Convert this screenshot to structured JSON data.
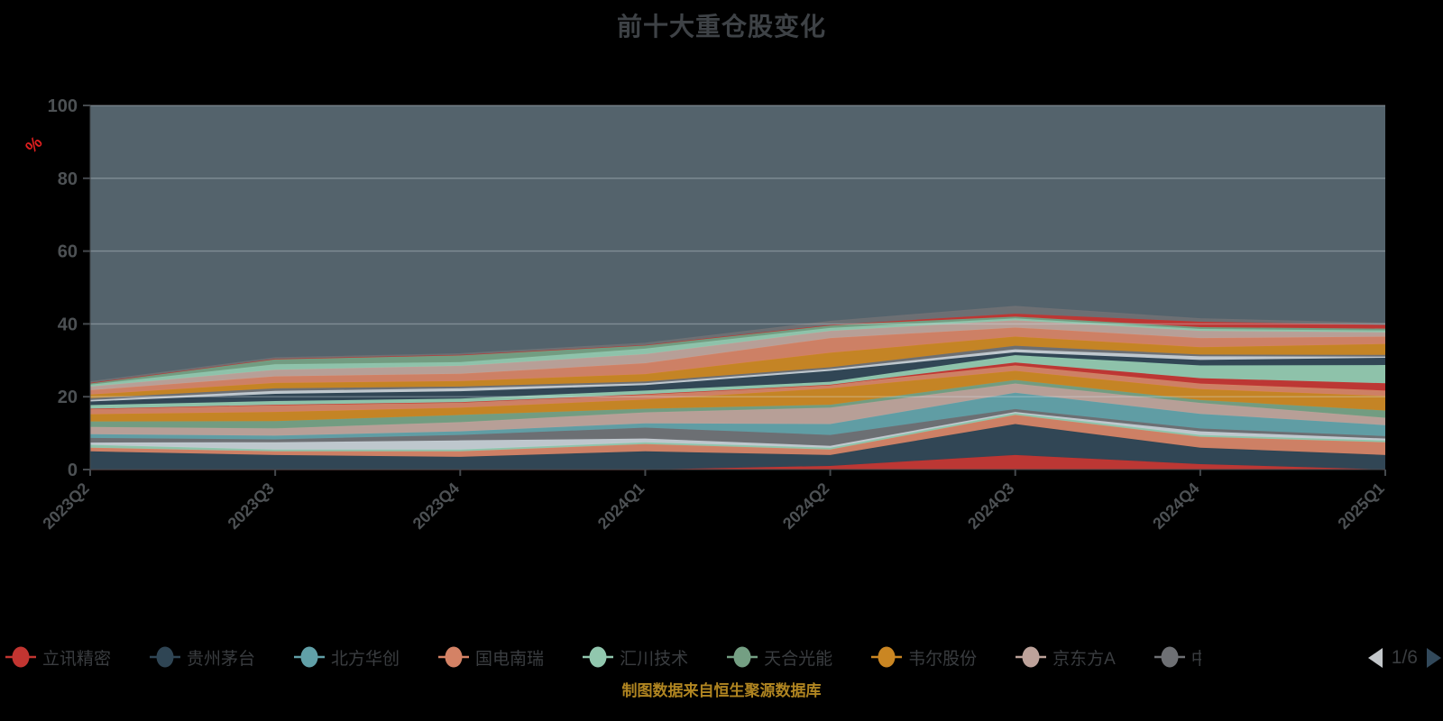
{
  "title": "前十大重仓股变化",
  "caption": "制图数据来自恒生聚源数据库",
  "pager": {
    "text": "1/6",
    "prev_icon": "left-triangle",
    "next_icon": "right-triangle"
  },
  "colors": {
    "page_background": "#000000",
    "plot_background": "#54636C",
    "grid_line": "#dbe4ea",
    "axis_line": "#45494d",
    "axis_label": "#4d5154",
    "title_text": "#3e4246",
    "unit_label": "#e01f1f",
    "caption_text": "#b08521",
    "legend_text": "#3a3d40",
    "pager_prev": "#c3c7ca",
    "pager_next": "#32495b"
  },
  "chart_data": {
    "type": "area",
    "stacked": true,
    "title": "前十大重仓股变化",
    "xlabel": "",
    "ylabel": "%",
    "ylim": [
      0,
      100
    ],
    "yticks": [
      0,
      20,
      40,
      60,
      80,
      100
    ],
    "grid": true,
    "legend_position": "bottom",
    "legend_page": "1/6",
    "categories": [
      "2023Q2",
      "2023Q3",
      "2023Q4",
      "2024Q1",
      "2024Q2",
      "2024Q3",
      "2024Q4",
      "2025Q1"
    ],
    "legend_visible": [
      {
        "label": "立讯精密",
        "color": "#c23531",
        "truncated": false
      },
      {
        "label": "贵州茅台",
        "color": "#2f4554",
        "truncated": false
      },
      {
        "label": "北方华创",
        "color": "#61a0a8",
        "truncated": false
      },
      {
        "label": "国电南瑞",
        "color": "#d48265",
        "truncated": false
      },
      {
        "label": "汇川技术",
        "color": "#91c7ae",
        "truncated": false
      },
      {
        "label": "天合光能",
        "color": "#749f83",
        "truncated": false
      },
      {
        "label": "韦尔股份",
        "color": "#ca8622",
        "truncated": false
      },
      {
        "label": "京东方A",
        "color": "#bda29a",
        "truncated": false
      },
      {
        "label": "中",
        "color": "#6e7074",
        "truncated": true
      }
    ],
    "series": [
      {
        "name": "立讯精密",
        "color": "#c23531",
        "values": [
          0,
          0,
          0,
          0,
          1,
          4,
          1.5,
          0
        ]
      },
      {
        "name": "贵州茅台",
        "color": "#2f4554",
        "values": [
          5,
          4,
          3.5,
          5,
          3,
          8.5,
          4.5,
          4
        ]
      },
      {
        "name": "国电南瑞",
        "color": "#d48265",
        "values": [
          1,
          1,
          1.5,
          2,
          1.5,
          2.5,
          3,
          3.5
        ]
      },
      {
        "name": "",
        "color": "#91c7ae",
        "values": [
          0.8,
          0.5,
          0.5,
          0.5,
          0.5,
          0.5,
          0.5,
          0.5
        ]
      },
      {
        "name": "",
        "color": "#c4ccd3",
        "values": [
          0.6,
          2,
          2.5,
          1,
          0.5,
          0.3,
          1,
          0.5
        ]
      },
      {
        "name": "中",
        "color": "#6e7074",
        "values": [
          1.3,
          0.8,
          1.5,
          3,
          3,
          0.8,
          0.8,
          0.7
        ]
      },
      {
        "name": "北方华创",
        "color": "#61a0a8",
        "values": [
          1,
          1,
          1,
          1.2,
          3,
          4.5,
          4,
          3
        ]
      },
      {
        "name": "京东方A",
        "color": "#bda29a",
        "values": [
          2,
          2,
          2.5,
          3,
          4.5,
          2.5,
          3,
          2
        ]
      },
      {
        "name": "天合光能",
        "color": "#749f83",
        "values": [
          1.5,
          2,
          2,
          1,
          0.8,
          1,
          0.8,
          2
        ]
      },
      {
        "name": "韦尔股份",
        "color": "#ca8622",
        "values": [
          2,
          2.5,
          2,
          2.5,
          4.5,
          2.5,
          3,
          4
        ]
      },
      {
        "name": "",
        "color": "#d48265",
        "values": [
          1.5,
          2,
          1.5,
          1.5,
          1,
          1.5,
          1.5,
          1.5
        ]
      },
      {
        "name": "",
        "color": "#c23531",
        "values": [
          0,
          0,
          0,
          0,
          0,
          0.8,
          1.5,
          2
        ]
      },
      {
        "name": "汇川技术",
        "color": "#91c7ae",
        "values": [
          1,
          1,
          1,
          1,
          0.8,
          2,
          3.5,
          5
        ]
      },
      {
        "name": "",
        "color": "#2f4554",
        "values": [
          1,
          2,
          2,
          1.5,
          3,
          0.8,
          1.5,
          2
        ]
      },
      {
        "name": "",
        "color": "#c4ccd3",
        "values": [
          0.4,
          0.8,
          0.8,
          0.5,
          0.5,
          0.8,
          1,
          0.3
        ]
      },
      {
        "name": "",
        "color": "#6e7074",
        "values": [
          0.5,
          0.7,
          0.5,
          0.5,
          0.5,
          1,
          0.5,
          0.5
        ]
      },
      {
        "name": "",
        "color": "#ca8622",
        "values": [
          1,
          1.5,
          1.5,
          2,
          4,
          2.5,
          2,
          3
        ]
      },
      {
        "name": "",
        "color": "#d48265",
        "values": [
          1.2,
          1.8,
          2,
          3,
          4,
          2.5,
          2.5,
          2
        ]
      },
      {
        "name": "",
        "color": "#bda29a",
        "values": [
          1,
          1.8,
          2.2,
          2.5,
          2,
          2,
          2,
          1.2
        ]
      },
      {
        "name": "",
        "color": "#91c7ae",
        "values": [
          0.5,
          1.5,
          1,
          1.5,
          0.8,
          0.5,
          0.5,
          0.5
        ]
      },
      {
        "name": "",
        "color": "#749f83",
        "values": [
          0.5,
          1.5,
          2,
          1,
          0.8,
          0.5,
          0.5,
          0.5
        ]
      },
      {
        "name": "",
        "color": "#c23531",
        "values": [
          0,
          0,
          0,
          0,
          0,
          0.8,
          1.5,
          1
        ]
      },
      {
        "name": "",
        "color": "#6e7074",
        "values": [
          0.3,
          0.3,
          0.3,
          0.5,
          1,
          2,
          0.8,
          0.5
        ]
      }
    ]
  }
}
